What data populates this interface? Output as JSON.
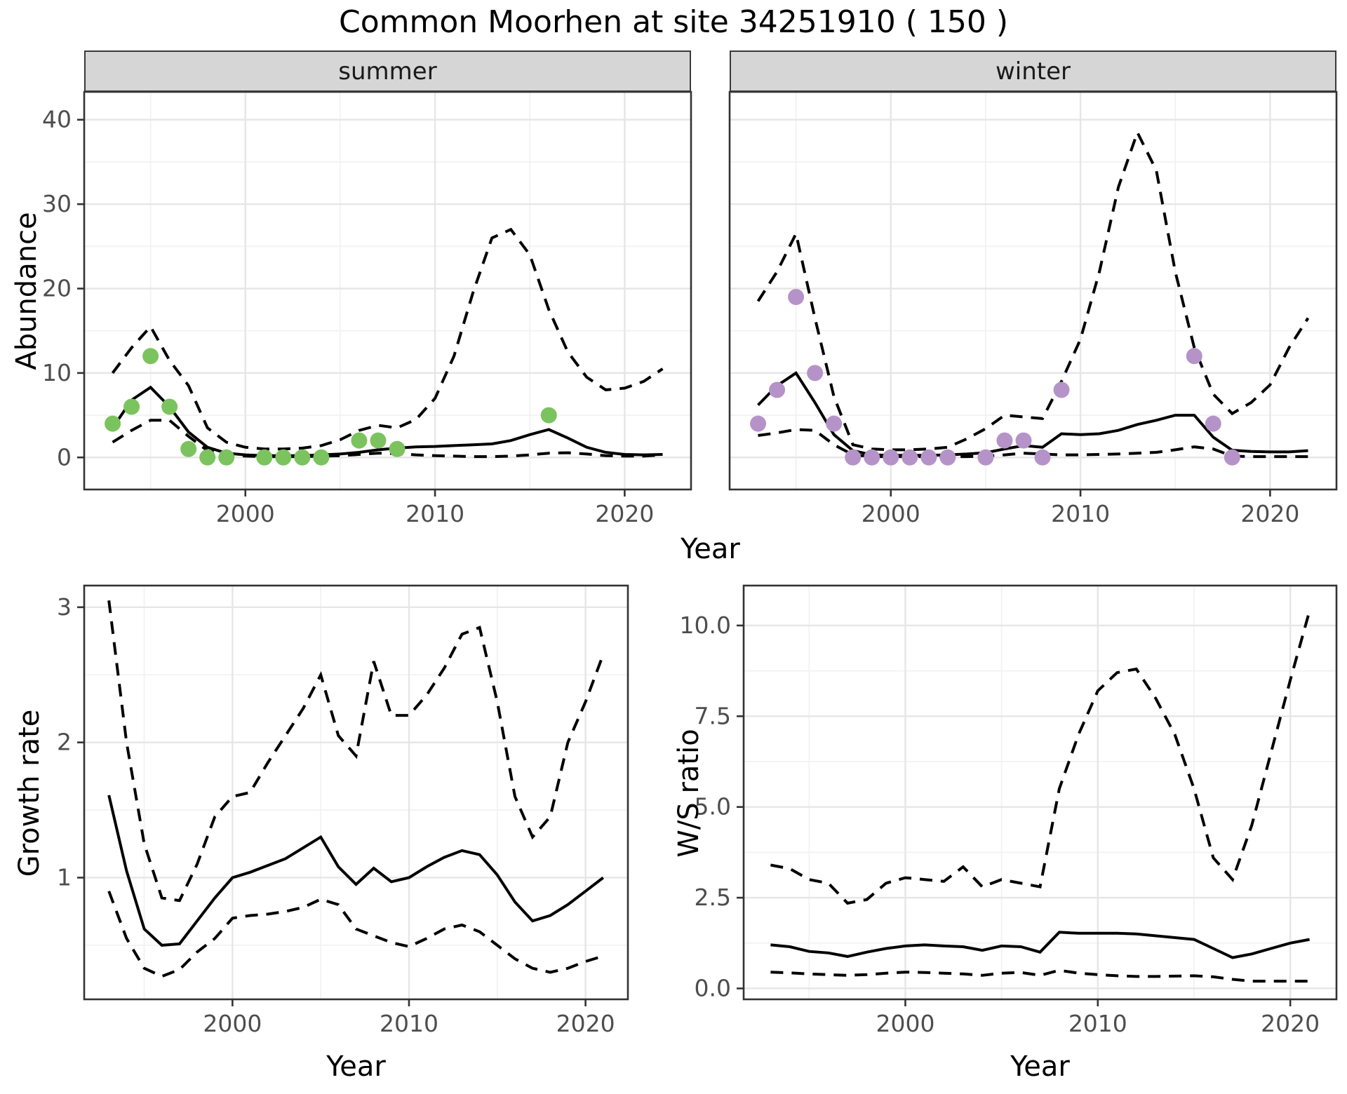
{
  "title": "Common Moorhen at site 34251910 ( 150 )",
  "axes": {
    "abundance": "Abundance",
    "year_top": "Year",
    "growth_rate": "Growth rate",
    "year_growth": "Year",
    "ws_ratio": "W/S ratio",
    "year_ws": "Year"
  },
  "facets": [
    {
      "label": "summer"
    },
    {
      "label": "winter"
    }
  ],
  "colors": {
    "summer_point": "#7bc35e",
    "winter_point": "#b593c8",
    "line": "#000000",
    "grid_major": "#e6e6e6",
    "grid_minor": "#f2f2f2",
    "panel_border": "#333333",
    "strip_bg": "#d6d6d6",
    "tick_text": "#4d4d4d"
  },
  "chart_data": [
    {
      "panel": "abundance_summer",
      "type": "line",
      "facet_label": "summer",
      "xlabel": "Year",
      "ylabel": "Abundance",
      "xlim": [
        1991.5,
        2023.5
      ],
      "ylim": [
        -3.8,
        43.3
      ],
      "x": [
        1993,
        1994,
        1995,
        1996,
        1997,
        1998,
        1999,
        2000,
        2001,
        2002,
        2003,
        2004,
        2005,
        2006,
        2007,
        2008,
        2009,
        2010,
        2011,
        2012,
        2013,
        2014,
        2015,
        2016,
        2017,
        2018,
        2019,
        2020,
        2021,
        2022
      ],
      "series": [
        {
          "name": "mean",
          "style": "solid",
          "values": [
            3.5,
            6.8,
            8.3,
            6.0,
            3.0,
            1.2,
            0.5,
            0.3,
            0.2,
            0.2,
            0.2,
            0.3,
            0.4,
            0.6,
            0.9,
            1.1,
            1.25,
            1.3,
            1.4,
            1.5,
            1.6,
            2.0,
            2.7,
            3.3,
            2.3,
            1.2,
            0.6,
            0.35,
            0.3,
            0.35
          ]
        },
        {
          "name": "upper_ci",
          "style": "dashed",
          "values": [
            10,
            13,
            15.5,
            11.5,
            8.5,
            3.5,
            1.8,
            1.2,
            1.0,
            1.0,
            1.1,
            1.4,
            2.1,
            3.2,
            3.8,
            3.5,
            4.5,
            7,
            12,
            19.5,
            26,
            27,
            24,
            17.5,
            12.5,
            9.5,
            8,
            8.2,
            9,
            10.5
          ]
        },
        {
          "name": "lower_ci",
          "style": "dashed",
          "values": [
            1.8,
            3.2,
            4.4,
            4.4,
            2.5,
            0.8,
            0.3,
            0.15,
            0.1,
            0.1,
            0.1,
            0.15,
            0.2,
            0.35,
            0.5,
            0.45,
            0.3,
            0.2,
            0.15,
            0.1,
            0.1,
            0.15,
            0.3,
            0.5,
            0.55,
            0.4,
            0.2,
            0.15,
            0.15,
            0.3
          ]
        }
      ],
      "observations": {
        "name": "summer observed counts",
        "color_key": "summer_point",
        "x": [
          1993,
          1994,
          1995,
          1996,
          1997,
          1998,
          1999,
          2001,
          2002,
          2003,
          2004,
          2006,
          2007,
          2008,
          2016
        ],
        "y": [
          4,
          6,
          12,
          6,
          1,
          0,
          0,
          0,
          0,
          0,
          0,
          2,
          2,
          1,
          5
        ]
      },
      "xticks": {
        "major": [
          2000,
          2010,
          2020
        ],
        "minor": [
          1995,
          2005,
          2015
        ],
        "labels": [
          "2000",
          "2010",
          "2020"
        ]
      },
      "yticks": {
        "major": [
          0,
          10,
          20,
          30,
          40
        ],
        "minor": [
          5,
          15,
          25,
          35
        ],
        "labels": [
          "0",
          "10",
          "20",
          "30",
          "40"
        ],
        "show_labels": true
      }
    },
    {
      "panel": "abundance_winter",
      "type": "line",
      "facet_label": "winter",
      "xlabel": "Year",
      "ylabel": "Abundance",
      "xlim": [
        1991.5,
        2023.5
      ],
      "ylim": [
        -3.8,
        43.3
      ],
      "x": [
        1993,
        1994,
        1995,
        1996,
        1997,
        1998,
        1999,
        2000,
        2001,
        2002,
        2003,
        2004,
        2005,
        2006,
        2007,
        2008,
        2009,
        2010,
        2011,
        2012,
        2013,
        2014,
        2015,
        2016,
        2017,
        2018,
        2019,
        2020,
        2021,
        2022
      ],
      "series": [
        {
          "name": "mean",
          "style": "solid",
          "values": [
            6.2,
            8.5,
            10,
            6.5,
            2.7,
            0.8,
            0.3,
            0.25,
            0.25,
            0.25,
            0.3,
            0.4,
            0.55,
            1.0,
            1.4,
            1.2,
            2.8,
            2.7,
            2.8,
            3.2,
            3.9,
            4.4,
            5.0,
            5.0,
            2.4,
            0.85,
            0.7,
            0.65,
            0.65,
            0.8
          ]
        },
        {
          "name": "upper_ci",
          "style": "dashed",
          "values": [
            18.5,
            22,
            26.5,
            16.5,
            7.2,
            1.5,
            1.0,
            0.9,
            0.9,
            1.0,
            1.2,
            2.2,
            3.4,
            5.0,
            4.8,
            4.6,
            9,
            14,
            22,
            32,
            38.5,
            34,
            22,
            13,
            7.5,
            5.2,
            6.5,
            8.6,
            13,
            16.5
          ]
        },
        {
          "name": "lower_ci",
          "style": "dashed",
          "values": [
            2.6,
            2.9,
            3.3,
            3.2,
            1.5,
            0.3,
            0.1,
            0.1,
            0.1,
            0.1,
            0.1,
            0.1,
            0.15,
            0.3,
            0.5,
            0.4,
            0.3,
            0.3,
            0.35,
            0.4,
            0.5,
            0.6,
            0.9,
            1.25,
            1.0,
            0.15,
            0.1,
            0.1,
            0.1,
            0.1
          ]
        }
      ],
      "observations": {
        "name": "winter observed counts",
        "color_key": "winter_point",
        "x": [
          1993,
          1994,
          1995,
          1996,
          1997,
          1998,
          1999,
          2000,
          2001,
          2002,
          2003,
          2005,
          2006,
          2007,
          2008,
          2009,
          2016,
          2017,
          2018
        ],
        "y": [
          4,
          8,
          19,
          10,
          4,
          0,
          0,
          0,
          0,
          0,
          0,
          0,
          2,
          2,
          0,
          8,
          12,
          4,
          0
        ]
      },
      "xticks": {
        "major": [
          2000,
          2010,
          2020
        ],
        "minor": [
          1995,
          2005,
          2015
        ],
        "labels": [
          "2000",
          "2010",
          "2020"
        ]
      },
      "yticks": {
        "major": [
          0,
          10,
          20,
          30,
          40
        ],
        "minor": [
          5,
          15,
          25,
          35
        ],
        "labels": [],
        "show_labels": false
      }
    },
    {
      "panel": "growth_rate",
      "type": "line",
      "facet_label": "",
      "xlabel": "Year",
      "ylabel": "Growth rate",
      "xlim": [
        1991.6,
        2022.4
      ],
      "ylim": [
        0.1,
        3.16
      ],
      "x": [
        1993,
        1994,
        1995,
        1996,
        1997,
        1998,
        1999,
        2000,
        2001,
        2002,
        2003,
        2004,
        2005,
        2006,
        2007,
        2008,
        2009,
        2010,
        2011,
        2012,
        2013,
        2014,
        2015,
        2016,
        2017,
        2018,
        2019,
        2020,
        2021
      ],
      "series": [
        {
          "name": "mean",
          "style": "solid",
          "values": [
            1.61,
            1.05,
            0.62,
            0.5,
            0.51,
            0.68,
            0.85,
            1.0,
            1.04,
            1.09,
            1.14,
            1.22,
            1.3,
            1.08,
            0.95,
            1.07,
            0.97,
            1.0,
            1.08,
            1.15,
            1.2,
            1.17,
            1.02,
            0.82,
            0.68,
            0.72,
            0.8,
            0.9,
            1.0
          ]
        },
        {
          "name": "upper_ci",
          "style": "dashed",
          "values": [
            3.05,
            2.0,
            1.25,
            0.85,
            0.83,
            1.1,
            1.45,
            1.6,
            1.63,
            1.85,
            2.05,
            2.25,
            2.5,
            2.05,
            1.9,
            2.6,
            2.2,
            2.2,
            2.35,
            2.55,
            2.8,
            2.85,
            2.3,
            1.6,
            1.3,
            1.45,
            2.0,
            2.3,
            2.65
          ]
        },
        {
          "name": "lower_ci",
          "style": "dashed",
          "values": [
            0.9,
            0.55,
            0.33,
            0.27,
            0.32,
            0.45,
            0.55,
            0.7,
            0.72,
            0.73,
            0.75,
            0.78,
            0.84,
            0.8,
            0.62,
            0.57,
            0.52,
            0.49,
            0.55,
            0.62,
            0.65,
            0.6,
            0.5,
            0.4,
            0.33,
            0.3,
            0.33,
            0.38,
            0.42
          ]
        }
      ],
      "observations": {
        "name": "",
        "color_key": "",
        "x": [],
        "y": []
      },
      "xticks": {
        "major": [
          2000,
          2010,
          2020
        ],
        "minor": [
          1995,
          2005,
          2015
        ],
        "labels": [
          "2000",
          "2010",
          "2020"
        ]
      },
      "yticks": {
        "major": [
          1,
          2,
          3
        ],
        "minor": [
          0.5,
          1.5,
          2.5
        ],
        "labels": [
          "1",
          "2",
          "3"
        ],
        "show_labels": true
      }
    },
    {
      "panel": "ws_ratio",
      "type": "line",
      "facet_label": "",
      "xlabel": "Year",
      "ylabel": "W/S ratio",
      "xlim": [
        1991.6,
        2022.4
      ],
      "ylim": [
        -0.3,
        11.1
      ],
      "x": [
        1993,
        1994,
        1995,
        1996,
        1997,
        1998,
        1999,
        2000,
        2001,
        2002,
        2003,
        2004,
        2005,
        2006,
        2007,
        2008,
        2009,
        2010,
        2011,
        2012,
        2013,
        2014,
        2015,
        2016,
        2017,
        2018,
        2019,
        2020,
        2021
      ],
      "series": [
        {
          "name": "mean",
          "style": "solid",
          "values": [
            1.2,
            1.15,
            1.02,
            0.98,
            0.88,
            1.0,
            1.1,
            1.17,
            1.2,
            1.17,
            1.15,
            1.05,
            1.17,
            1.15,
            1.0,
            1.55,
            1.52,
            1.52,
            1.52,
            1.5,
            1.45,
            1.4,
            1.35,
            1.1,
            0.85,
            0.95,
            1.1,
            1.25,
            1.35
          ]
        },
        {
          "name": "upper_ci",
          "style": "dashed",
          "values": [
            3.4,
            3.3,
            3.0,
            2.9,
            2.35,
            2.45,
            2.9,
            3.05,
            3.0,
            2.95,
            3.35,
            2.8,
            3.0,
            2.9,
            2.8,
            5.5,
            7.0,
            8.2,
            8.7,
            8.8,
            8.0,
            7.0,
            5.5,
            3.6,
            3.0,
            4.5,
            6.5,
            8.5,
            10.4
          ]
        },
        {
          "name": "lower_ci",
          "style": "dashed",
          "values": [
            0.45,
            0.43,
            0.4,
            0.38,
            0.36,
            0.38,
            0.42,
            0.45,
            0.44,
            0.42,
            0.4,
            0.36,
            0.42,
            0.44,
            0.36,
            0.5,
            0.42,
            0.38,
            0.35,
            0.33,
            0.33,
            0.34,
            0.35,
            0.32,
            0.25,
            0.2,
            0.2,
            0.2,
            0.2
          ]
        }
      ],
      "observations": {
        "name": "",
        "color_key": "",
        "x": [],
        "y": []
      },
      "xticks": {
        "major": [
          2000,
          2010,
          2020
        ],
        "minor": [
          1995,
          2005,
          2015
        ],
        "labels": [
          "2000",
          "2010",
          "2020"
        ]
      },
      "yticks": {
        "major": [
          0,
          2.5,
          5,
          7.5,
          10
        ],
        "minor": [
          1.25,
          3.75,
          6.25,
          8.75
        ],
        "labels": [
          "0.0",
          "2.5",
          "5.0",
          "7.5",
          "10.0"
        ],
        "show_labels": true
      }
    }
  ]
}
